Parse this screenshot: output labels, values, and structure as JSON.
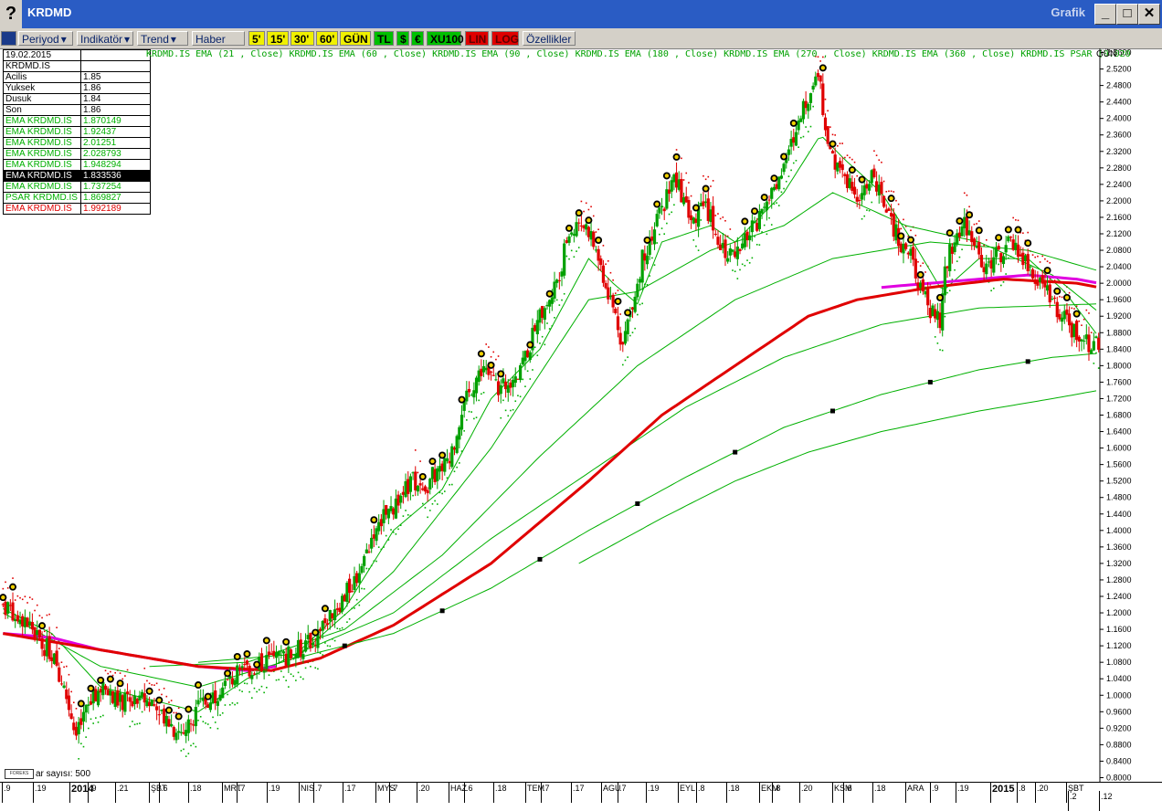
{
  "window": {
    "title": "KRDMD",
    "right_label": "Grafik",
    "help": "?",
    "min": "_",
    "max": "□",
    "close": "✕"
  },
  "toolbar": {
    "buttons": [
      {
        "label": "Periyod",
        "style": "menu"
      },
      {
        "label": "Indikatör",
        "style": "menu"
      },
      {
        "label": "Trend",
        "style": "menu"
      },
      {
        "label": "Haber",
        "style": "plain"
      },
      {
        "label": "5'",
        "style": "yel"
      },
      {
        "label": "15'",
        "style": "yel"
      },
      {
        "label": "30'",
        "style": "yel"
      },
      {
        "label": "60'",
        "style": "yel"
      },
      {
        "label": "GÜN",
        "style": "yel"
      },
      {
        "label": "TL",
        "style": "grn"
      },
      {
        "label": "$",
        "style": "grn"
      },
      {
        "label": "€",
        "style": "grn"
      },
      {
        "label": "XU100",
        "style": "grn"
      },
      {
        "label": "LIN",
        "style": "red"
      },
      {
        "label": "LOG",
        "style": "red"
      },
      {
        "label": "Özellikler",
        "style": "plain"
      }
    ]
  },
  "info_table": {
    "date": "19.02.2015",
    "symbol": "KRDMD.IS",
    "rows": [
      {
        "label": " Acilis",
        "value": "1.85",
        "color": "#000000"
      },
      {
        "label": " Yuksek",
        "value": "1.86",
        "color": "#000000"
      },
      {
        "label": " Dusuk",
        "value": "1.84",
        "color": "#000000"
      },
      {
        "label": " Son",
        "value": "1.86",
        "color": "#000000"
      },
      {
        "label": "EMA KRDMD.IS",
        "value": "1.870149",
        "color": "#00b000"
      },
      {
        "label": "EMA KRDMD.IS",
        "value": "1.92437",
        "color": "#00b000"
      },
      {
        "label": "EMA KRDMD.IS",
        "value": "2.01251",
        "color": "#00b000"
      },
      {
        "label": "EMA KRDMD.IS",
        "value": "2.028793",
        "color": "#00b000"
      },
      {
        "label": "EMA KRDMD.IS",
        "value": "1.948294",
        "color": "#00b000"
      },
      {
        "label": "EMA KRDMD.IS",
        "value": "1.833536",
        "color": "#ffffff",
        "highlight": true
      },
      {
        "label": "EMA KRDMD.IS",
        "value": "1.737254",
        "color": "#00b000"
      },
      {
        "label": "PSAR KRDMD.IS",
        "value": "1.869827",
        "color": "#00b000"
      },
      {
        "label": "EMA KRDMD.IS",
        "value": "1.992189",
        "color": "#e00000"
      }
    ]
  },
  "indicator_legend": "KRDMD.IS EMA (21 , Close)  KRDMD.IS EMA (60 , Close)  KRDMD.IS EMA (90 , Close)  KRDMD.IS EMA (180 , Close)  KRDMD.IS EMA (270 , Close)  KRDMD.IS EMA (360 , Close)  KRDMD.IS PSAR (0.020",
  "period_label": "GÜN",
  "bar_count": "ar sayısı: 500",
  "logo_text": "FOREKS",
  "x_axis": [
    {
      "label": ".9"
    },
    {
      "label": ".19"
    },
    {
      "label": "2014",
      "major": true
    },
    {
      "label": ".9"
    },
    {
      "label": ".21"
    },
    {
      "label": "ŞBT"
    },
    {
      "label": ".6"
    },
    {
      "label": ".18"
    },
    {
      "label": "MRT"
    },
    {
      "label": ".7"
    },
    {
      "label": ".19"
    },
    {
      "label": "NIS"
    },
    {
      "label": ".7"
    },
    {
      "label": ".17"
    },
    {
      "label": "MYS"
    },
    {
      "label": ".7"
    },
    {
      "label": ".20"
    },
    {
      "label": "HAZ"
    },
    {
      "label": ".6"
    },
    {
      "label": ".18"
    },
    {
      "label": "TEM"
    },
    {
      "label": ".7"
    },
    {
      "label": ".17"
    },
    {
      "label": "AGU"
    },
    {
      "label": ".7"
    },
    {
      "label": ".19"
    },
    {
      "label": "EYL"
    },
    {
      "label": ".8"
    },
    {
      "label": ".18"
    },
    {
      "label": "EKM"
    },
    {
      "label": ".8"
    },
    {
      "label": ".20"
    },
    {
      "label": "KSM"
    },
    {
      "label": ".6"
    },
    {
      "label": ".18"
    },
    {
      "label": "ARA"
    },
    {
      "label": ".9"
    },
    {
      "label": ".19"
    },
    {
      "label": "2015",
      "major": true
    },
    {
      "label": ".8"
    },
    {
      "label": ".20"
    },
    {
      "label": "ŞBT"
    },
    {
      "label": ".2"
    },
    {
      "label": ".12"
    }
  ],
  "colors": {
    "up": "#00a000",
    "down": "#e00000",
    "ema_green": "#00b000",
    "ema_red": "#e00000",
    "ema_magenta": "#e000e0",
    "psar": "#00b000"
  },
  "chart_data": {
    "type": "candlestick",
    "ylim": [
      0.79,
      2.57
    ],
    "y_ticks": [
      0.8,
      0.84,
      0.88,
      0.92,
      0.96,
      1.0,
      1.04,
      1.08,
      1.12,
      1.16,
      1.2,
      1.24,
      1.28,
      1.32,
      1.36,
      1.4,
      1.44,
      1.48,
      1.52,
      1.56,
      1.6,
      1.64,
      1.68,
      1.72,
      1.76,
      1.8,
      1.84,
      1.88,
      1.92,
      1.96,
      2.0,
      2.04,
      2.08,
      2.12,
      2.16,
      2.2,
      2.24,
      2.28,
      2.32,
      2.36,
      2.4,
      2.44,
      2.48,
      2.52,
      2.56
    ],
    "close_path": [
      [
        0,
        1.22
      ],
      [
        5,
        1.2
      ],
      [
        10,
        1.18
      ],
      [
        14,
        1.14
      ],
      [
        20,
        1.1
      ],
      [
        24,
        1.04
      ],
      [
        28,
        0.95
      ],
      [
        30,
        0.9
      ],
      [
        34,
        0.96
      ],
      [
        40,
        1.02
      ],
      [
        46,
        0.99
      ],
      [
        52,
        0.98
      ],
      [
        58,
        0.99
      ],
      [
        64,
        0.97
      ],
      [
        70,
        0.92
      ],
      [
        74,
        0.91
      ],
      [
        78,
        0.95
      ],
      [
        82,
        0.98
      ],
      [
        86,
        1.0
      ],
      [
        90,
        1.02
      ],
      [
        96,
        1.05
      ],
      [
        100,
        1.06
      ],
      [
        106,
        1.08
      ],
      [
        112,
        1.09
      ],
      [
        118,
        1.1
      ],
      [
        124,
        1.12
      ],
      [
        128,
        1.14
      ],
      [
        132,
        1.18
      ],
      [
        136,
        1.21
      ],
      [
        140,
        1.24
      ],
      [
        144,
        1.28
      ],
      [
        148,
        1.33
      ],
      [
        152,
        1.4
      ],
      [
        156,
        1.43
      ],
      [
        160,
        1.46
      ],
      [
        164,
        1.49
      ],
      [
        168,
        1.52
      ],
      [
        172,
        1.5
      ],
      [
        176,
        1.53
      ],
      [
        180,
        1.55
      ],
      [
        184,
        1.6
      ],
      [
        188,
        1.68
      ],
      [
        192,
        1.75
      ],
      [
        196,
        1.79
      ],
      [
        200,
        1.77
      ],
      [
        204,
        1.74
      ],
      [
        208,
        1.77
      ],
      [
        212,
        1.8
      ],
      [
        216,
        1.85
      ],
      [
        220,
        1.92
      ],
      [
        224,
        1.96
      ],
      [
        228,
        2.03
      ],
      [
        232,
        2.12
      ],
      [
        236,
        2.15
      ],
      [
        240,
        2.13
      ],
      [
        244,
        2.06
      ],
      [
        248,
        1.98
      ],
      [
        252,
        1.9
      ],
      [
        254,
        1.85
      ],
      [
        258,
        1.96
      ],
      [
        262,
        2.06
      ],
      [
        266,
        2.12
      ],
      [
        270,
        2.18
      ],
      [
        274,
        2.26
      ],
      [
        278,
        2.22
      ],
      [
        282,
        2.14
      ],
      [
        286,
        2.2
      ],
      [
        290,
        2.16
      ],
      [
        294,
        2.1
      ],
      [
        298,
        2.06
      ],
      [
        302,
        2.08
      ],
      [
        306,
        2.12
      ],
      [
        310,
        2.16
      ],
      [
        314,
        2.2
      ],
      [
        318,
        2.26
      ],
      [
        322,
        2.32
      ],
      [
        326,
        2.38
      ],
      [
        330,
        2.46
      ],
      [
        334,
        2.52
      ],
      [
        336,
        2.42
      ],
      [
        340,
        2.3
      ],
      [
        344,
        2.26
      ],
      [
        348,
        2.24
      ],
      [
        352,
        2.2
      ],
      [
        356,
        2.26
      ],
      [
        360,
        2.2
      ],
      [
        364,
        2.14
      ],
      [
        368,
        2.1
      ],
      [
        372,
        2.06
      ],
      [
        376,
        1.99
      ],
      [
        380,
        1.93
      ],
      [
        384,
        1.9
      ],
      [
        386,
        2.02
      ],
      [
        390,
        2.12
      ],
      [
        394,
        2.14
      ],
      [
        398,
        2.1
      ],
      [
        402,
        2.04
      ],
      [
        406,
        2.06
      ],
      [
        410,
        2.08
      ],
      [
        414,
        2.1
      ],
      [
        418,
        2.06
      ],
      [
        422,
        2.02
      ],
      [
        426,
        2.0
      ],
      [
        430,
        1.96
      ],
      [
        434,
        1.92
      ],
      [
        438,
        1.89
      ],
      [
        442,
        1.87
      ],
      [
        446,
        1.85
      ],
      [
        449,
        1.86
      ]
    ],
    "ema": [
      {
        "name": "EMA (21 , Close)",
        "color": "#00b000",
        "width": 1,
        "path": [
          [
            0,
            1.21
          ],
          [
            20,
            1.15
          ],
          [
            40,
            1.02
          ],
          [
            60,
            0.99
          ],
          [
            80,
            0.96
          ],
          [
            100,
            1.04
          ],
          [
            120,
            1.1
          ],
          [
            140,
            1.21
          ],
          [
            160,
            1.4
          ],
          [
            180,
            1.5
          ],
          [
            200,
            1.72
          ],
          [
            220,
            1.84
          ],
          [
            240,
            2.06
          ],
          [
            250,
            2.0
          ],
          [
            260,
            1.95
          ],
          [
            270,
            2.1
          ],
          [
            290,
            2.14
          ],
          [
            300,
            2.1
          ],
          [
            320,
            2.22
          ],
          [
            335,
            2.36
          ],
          [
            345,
            2.3
          ],
          [
            360,
            2.22
          ],
          [
            375,
            2.08
          ],
          [
            385,
            1.98
          ],
          [
            400,
            2.06
          ],
          [
            420,
            2.06
          ],
          [
            435,
            1.98
          ],
          [
            449,
            1.87
          ]
        ]
      },
      {
        "name": "EMA (60 , Close)",
        "color": "#00b000",
        "width": 1,
        "path": [
          [
            0,
            1.2
          ],
          [
            40,
            1.07
          ],
          [
            80,
            1.02
          ],
          [
            120,
            1.09
          ],
          [
            160,
            1.3
          ],
          [
            200,
            1.6
          ],
          [
            240,
            1.96
          ],
          [
            260,
            1.98
          ],
          [
            290,
            2.08
          ],
          [
            320,
            2.14
          ],
          [
            340,
            2.22
          ],
          [
            370,
            2.14
          ],
          [
            400,
            2.1
          ],
          [
            430,
            2.02
          ],
          [
            449,
            1.93
          ]
        ]
      },
      {
        "name": "EMA (90 , Close)",
        "color": "#e000e0",
        "width": 3,
        "path": [
          [
            0,
            1.15
          ],
          [
            20,
            1.14
          ],
          [
            40,
            1.11
          ],
          [
            60,
            1.09
          ],
          [
            80,
            1.07
          ],
          [
            100,
            1.06
          ],
          [
            112,
            1.07
          ]
        ]
      },
      {
        "name": "EMA (90 , Close) r",
        "color": "#e000e0",
        "width": 3,
        "path": [
          [
            360,
            1.99
          ],
          [
            380,
            2.0
          ],
          [
            400,
            2.01
          ],
          [
            420,
            2.02
          ],
          [
            440,
            2.01
          ],
          [
            449,
            2.0
          ]
        ]
      },
      {
        "name": "EMA (180 , Close)",
        "color": "#00b000",
        "width": 1,
        "path": [
          [
            60,
            1.07
          ],
          [
            100,
            1.08
          ],
          [
            140,
            1.16
          ],
          [
            180,
            1.34
          ],
          [
            220,
            1.58
          ],
          [
            260,
            1.8
          ],
          [
            300,
            1.96
          ],
          [
            340,
            2.06
          ],
          [
            380,
            2.1
          ],
          [
            420,
            2.08
          ],
          [
            449,
            2.03
          ]
        ]
      },
      {
        "name": "EMA (270 , Close)",
        "color": "#00b000",
        "width": 1,
        "path": [
          [
            80,
            1.08
          ],
          [
            120,
            1.1
          ],
          [
            160,
            1.2
          ],
          [
            200,
            1.38
          ],
          [
            240,
            1.54
          ],
          [
            280,
            1.7
          ],
          [
            320,
            1.82
          ],
          [
            360,
            1.9
          ],
          [
            400,
            1.94
          ],
          [
            449,
            1.95
          ]
        ]
      },
      {
        "name": "EMA red",
        "color": "#e00000",
        "width": 3,
        "path": [
          [
            0,
            1.15
          ],
          [
            40,
            1.11
          ],
          [
            80,
            1.07
          ],
          [
            110,
            1.06
          ],
          [
            130,
            1.09
          ],
          [
            160,
            1.17
          ],
          [
            200,
            1.32
          ],
          [
            240,
            1.52
          ],
          [
            270,
            1.68
          ],
          [
            300,
            1.8
          ],
          [
            330,
            1.92
          ],
          [
            350,
            1.96
          ],
          [
            380,
            1.99
          ],
          [
            410,
            2.01
          ],
          [
            440,
            2.0
          ],
          [
            449,
            1.99
          ]
        ]
      },
      {
        "name": "EMA (360 , Close)",
        "color": "#00b000",
        "width": 1,
        "path": [
          [
            120,
            1.09
          ],
          [
            160,
            1.15
          ],
          [
            200,
            1.26
          ],
          [
            240,
            1.4
          ],
          [
            280,
            1.53
          ],
          [
            320,
            1.65
          ],
          [
            360,
            1.73
          ],
          [
            400,
            1.79
          ],
          [
            430,
            1.82
          ],
          [
            449,
            1.83
          ]
        ]
      },
      {
        "name": "EMA (360 , Close) long",
        "color": "#00b000",
        "width": 1,
        "path": [
          [
            236,
            1.32
          ],
          [
            270,
            1.43
          ],
          [
            300,
            1.52
          ],
          [
            330,
            1.59
          ],
          [
            360,
            1.64
          ],
          [
            400,
            1.69
          ],
          [
            430,
            1.72
          ],
          [
            449,
            1.74
          ]
        ]
      }
    ]
  }
}
